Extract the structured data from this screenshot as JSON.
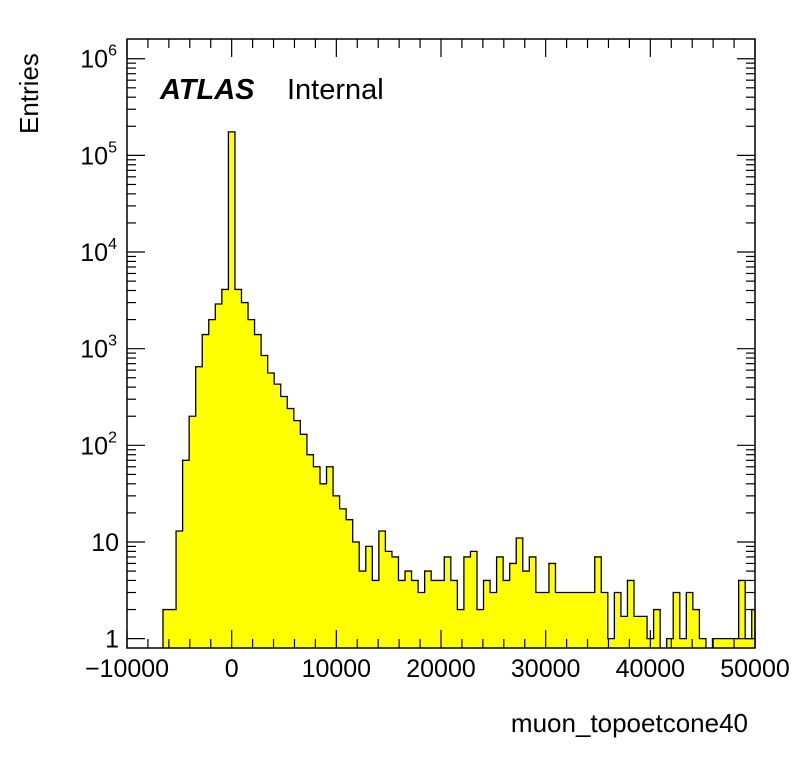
{
  "chart_data": {
    "type": "bar",
    "title": "",
    "xlabel": "muon_topoetcone40",
    "ylabel": "Entries",
    "annotation": {
      "experiment": "ATLAS",
      "status": "Internal"
    },
    "xlim": [
      -10000,
      50000
    ],
    "ylim": [
      0.8,
      1600000.0
    ],
    "yscale": "log",
    "bin_width": 625,
    "x_ticks": [
      "−10000",
      "0",
      "10000",
      "20000",
      "30000",
      "40000",
      "50000"
    ],
    "x_tick_values": [
      -10000,
      0,
      10000,
      20000,
      30000,
      40000,
      50000
    ],
    "y_ticks": [
      {
        "base": "1",
        "exp": ""
      },
      {
        "base": "10",
        "exp": ""
      },
      {
        "base": "10",
        "exp": "2"
      },
      {
        "base": "10",
        "exp": "3"
      },
      {
        "base": "10",
        "exp": "4"
      },
      {
        "base": "10",
        "exp": "5"
      },
      {
        "base": "10",
        "exp": "6"
      }
    ],
    "y_tick_values": [
      1,
      10,
      100,
      1000,
      10000,
      100000,
      1000000
    ],
    "fill_color": "#ffff00",
    "line_color": "#000000",
    "grid": false,
    "bins": [
      {
        "x": -6250,
        "y": 2
      },
      {
        "x": -5625,
        "y": 2
      },
      {
        "x": -5000,
        "y": 13
      },
      {
        "x": -4375,
        "y": 70
      },
      {
        "x": -3750,
        "y": 200
      },
      {
        "x": -3125,
        "y": 650
      },
      {
        "x": -2500,
        "y": 1400
      },
      {
        "x": -1875,
        "y": 2000
      },
      {
        "x": -1250,
        "y": 2900
      },
      {
        "x": -625,
        "y": 4100
      },
      {
        "x": 0,
        "y": 175000
      },
      {
        "x": 625,
        "y": 4100
      },
      {
        "x": 1250,
        "y": 3000
      },
      {
        "x": 1875,
        "y": 2000
      },
      {
        "x": 2500,
        "y": 1400
      },
      {
        "x": 3125,
        "y": 850
      },
      {
        "x": 3750,
        "y": 560
      },
      {
        "x": 4375,
        "y": 430
      },
      {
        "x": 5000,
        "y": 320
      },
      {
        "x": 5625,
        "y": 240
      },
      {
        "x": 6250,
        "y": 180
      },
      {
        "x": 6875,
        "y": 130
      },
      {
        "x": 7500,
        "y": 80
      },
      {
        "x": 8125,
        "y": 60
      },
      {
        "x": 8750,
        "y": 40
      },
      {
        "x": 9375,
        "y": 60
      },
      {
        "x": 10000,
        "y": 30
      },
      {
        "x": 10625,
        "y": 22
      },
      {
        "x": 11250,
        "y": 17
      },
      {
        "x": 11875,
        "y": 10
      },
      {
        "x": 12500,
        "y": 5
      },
      {
        "x": 13125,
        "y": 9
      },
      {
        "x": 13750,
        "y": 4
      },
      {
        "x": 14375,
        "y": 13
      },
      {
        "x": 15000,
        "y": 8
      },
      {
        "x": 15625,
        "y": 7
      },
      {
        "x": 16250,
        "y": 4
      },
      {
        "x": 16875,
        "y": 5
      },
      {
        "x": 17500,
        "y": 4
      },
      {
        "x": 18125,
        "y": 3
      },
      {
        "x": 18750,
        "y": 5
      },
      {
        "x": 19375,
        "y": 4
      },
      {
        "x": 20000,
        "y": 4
      },
      {
        "x": 20625,
        "y": 7
      },
      {
        "x": 21250,
        "y": 4
      },
      {
        "x": 21875,
        "y": 2
      },
      {
        "x": 22500,
        "y": 7
      },
      {
        "x": 23125,
        "y": 8
      },
      {
        "x": 23750,
        "y": 2
      },
      {
        "x": 24375,
        "y": 4
      },
      {
        "x": 25000,
        "y": 3
      },
      {
        "x": 25625,
        "y": 7
      },
      {
        "x": 26250,
        "y": 4
      },
      {
        "x": 26875,
        "y": 6
      },
      {
        "x": 27500,
        "y": 11
      },
      {
        "x": 28125,
        "y": 5
      },
      {
        "x": 28750,
        "y": 7
      },
      {
        "x": 29375,
        "y": 3
      },
      {
        "x": 30000,
        "y": 3
      },
      {
        "x": 30625,
        "y": 6
      },
      {
        "x": 31250,
        "y": 3
      },
      {
        "x": 31875,
        "y": 3
      },
      {
        "x": 32500,
        "y": 3
      },
      {
        "x": 33125,
        "y": 3
      },
      {
        "x": 33750,
        "y": 3
      },
      {
        "x": 34375,
        "y": 3
      },
      {
        "x": 35000,
        "y": 7
      },
      {
        "x": 35625,
        "y": 3
      },
      {
        "x": 36250,
        "y": 1
      },
      {
        "x": 36875,
        "y": 3
      },
      {
        "x": 37500,
        "y": 1.7
      },
      {
        "x": 38125,
        "y": 4
      },
      {
        "x": 38750,
        "y": 1.7
      },
      {
        "x": 39375,
        "y": 1.7
      },
      {
        "x": 40000,
        "y": 1
      },
      {
        "x": 40625,
        "y": 2
      },
      {
        "x": 41875,
        "y": 1
      },
      {
        "x": 42500,
        "y": 3
      },
      {
        "x": 43125,
        "y": 1
      },
      {
        "x": 43750,
        "y": 3
      },
      {
        "x": 44375,
        "y": 2
      },
      {
        "x": 45000,
        "y": 1
      },
      {
        "x": 46250,
        "y": 1
      },
      {
        "x": 46875,
        "y": 1
      },
      {
        "x": 47500,
        "y": 1
      },
      {
        "x": 48125,
        "y": 1
      },
      {
        "x": 48750,
        "y": 4
      },
      {
        "x": 49375,
        "y": 1
      },
      {
        "x": 50000,
        "y": 2
      }
    ]
  }
}
